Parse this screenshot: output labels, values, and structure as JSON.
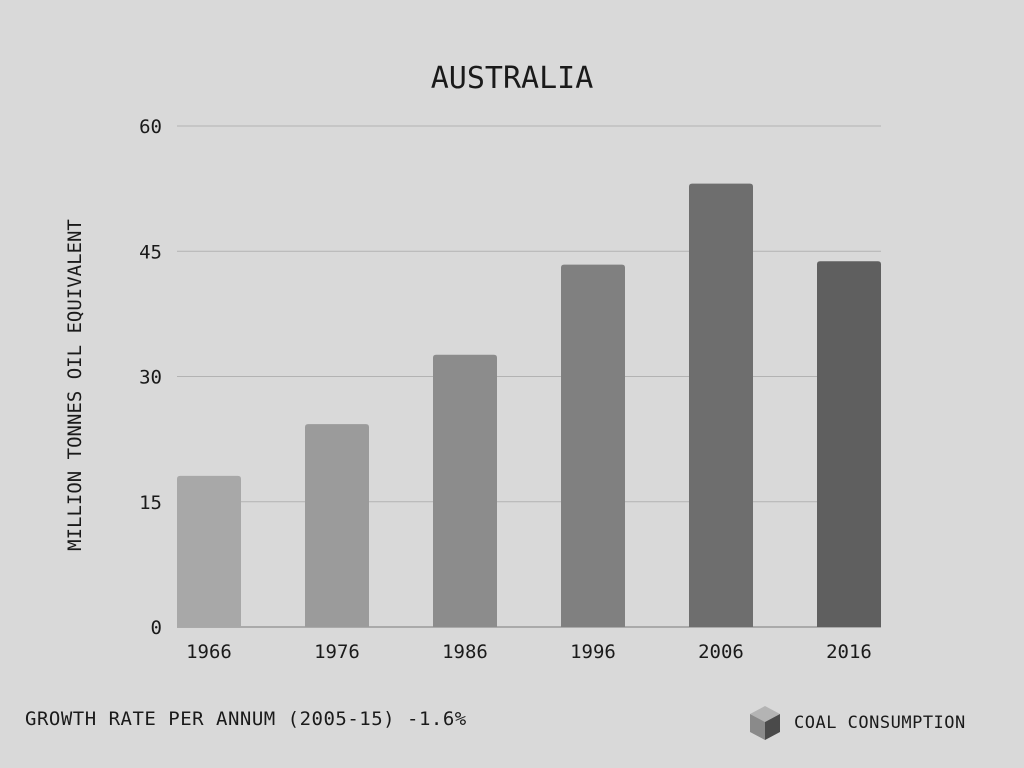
{
  "chart_data": {
    "type": "bar",
    "title": "AUSTRALIA",
    "xlabel": "",
    "ylabel": "MILLION TONNES OIL EQUIVALENT",
    "categories": [
      "1966",
      "1976",
      "1986",
      "1996",
      "2006",
      "2016"
    ],
    "series": [
      {
        "name": "COAL CONSUMPTION",
        "values": [
          18.1,
          24.3,
          32.6,
          43.4,
          53.1,
          43.8
        ]
      }
    ],
    "ylim": [
      0,
      60
    ],
    "yticks": [
      "0",
      "15",
      "30",
      "45",
      "60"
    ],
    "grid": true,
    "legend_position": "bottom-right",
    "colors": {
      "background": "#d9d9d9",
      "bars": [
        "#a8a8a8",
        "#9b9b9b",
        "#8c8c8c",
        "#808080",
        "#6e6e6e",
        "#5f5f5f"
      ],
      "grid": "#b3b3b3",
      "text": "#1a1a1a"
    }
  },
  "footer": {
    "note": "GROWTH RATE PER ANNUM (2005-15) -1.6%"
  },
  "legend": {
    "label": "COAL CONSUMPTION",
    "icon": "cube-icon"
  }
}
